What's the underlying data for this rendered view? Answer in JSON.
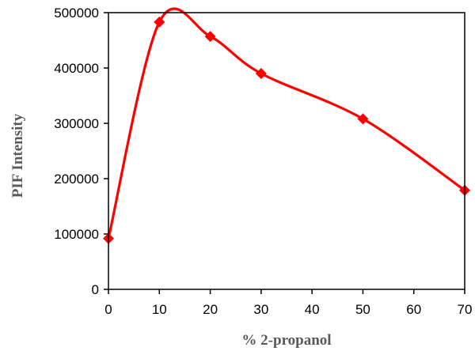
{
  "chart_data": {
    "type": "line",
    "title": "",
    "xlabel": "% 2-propanol",
    "ylabel": "PIF Intensity",
    "xlim": [
      0,
      70
    ],
    "ylim": [
      0,
      500000
    ],
    "x_ticks": [
      0,
      10,
      20,
      30,
      40,
      50,
      60,
      70
    ],
    "y_ticks": [
      0,
      100000,
      200000,
      300000,
      400000,
      500000
    ],
    "x_tick_labels": [
      "0",
      "10",
      "20",
      "30",
      "40",
      "50",
      "60",
      "70"
    ],
    "y_tick_labels": [
      "0",
      "100000",
      "200000",
      "300000",
      "400000",
      "500000"
    ],
    "grid": false,
    "legend": "none",
    "smoothed": true,
    "marker": "diamond",
    "series": [
      {
        "color": "#ff0000",
        "x": [
          0,
          10,
          20,
          30,
          50,
          70
        ],
        "y": [
          92000,
          483000,
          457000,
          390000,
          308000,
          179000
        ]
      }
    ]
  }
}
